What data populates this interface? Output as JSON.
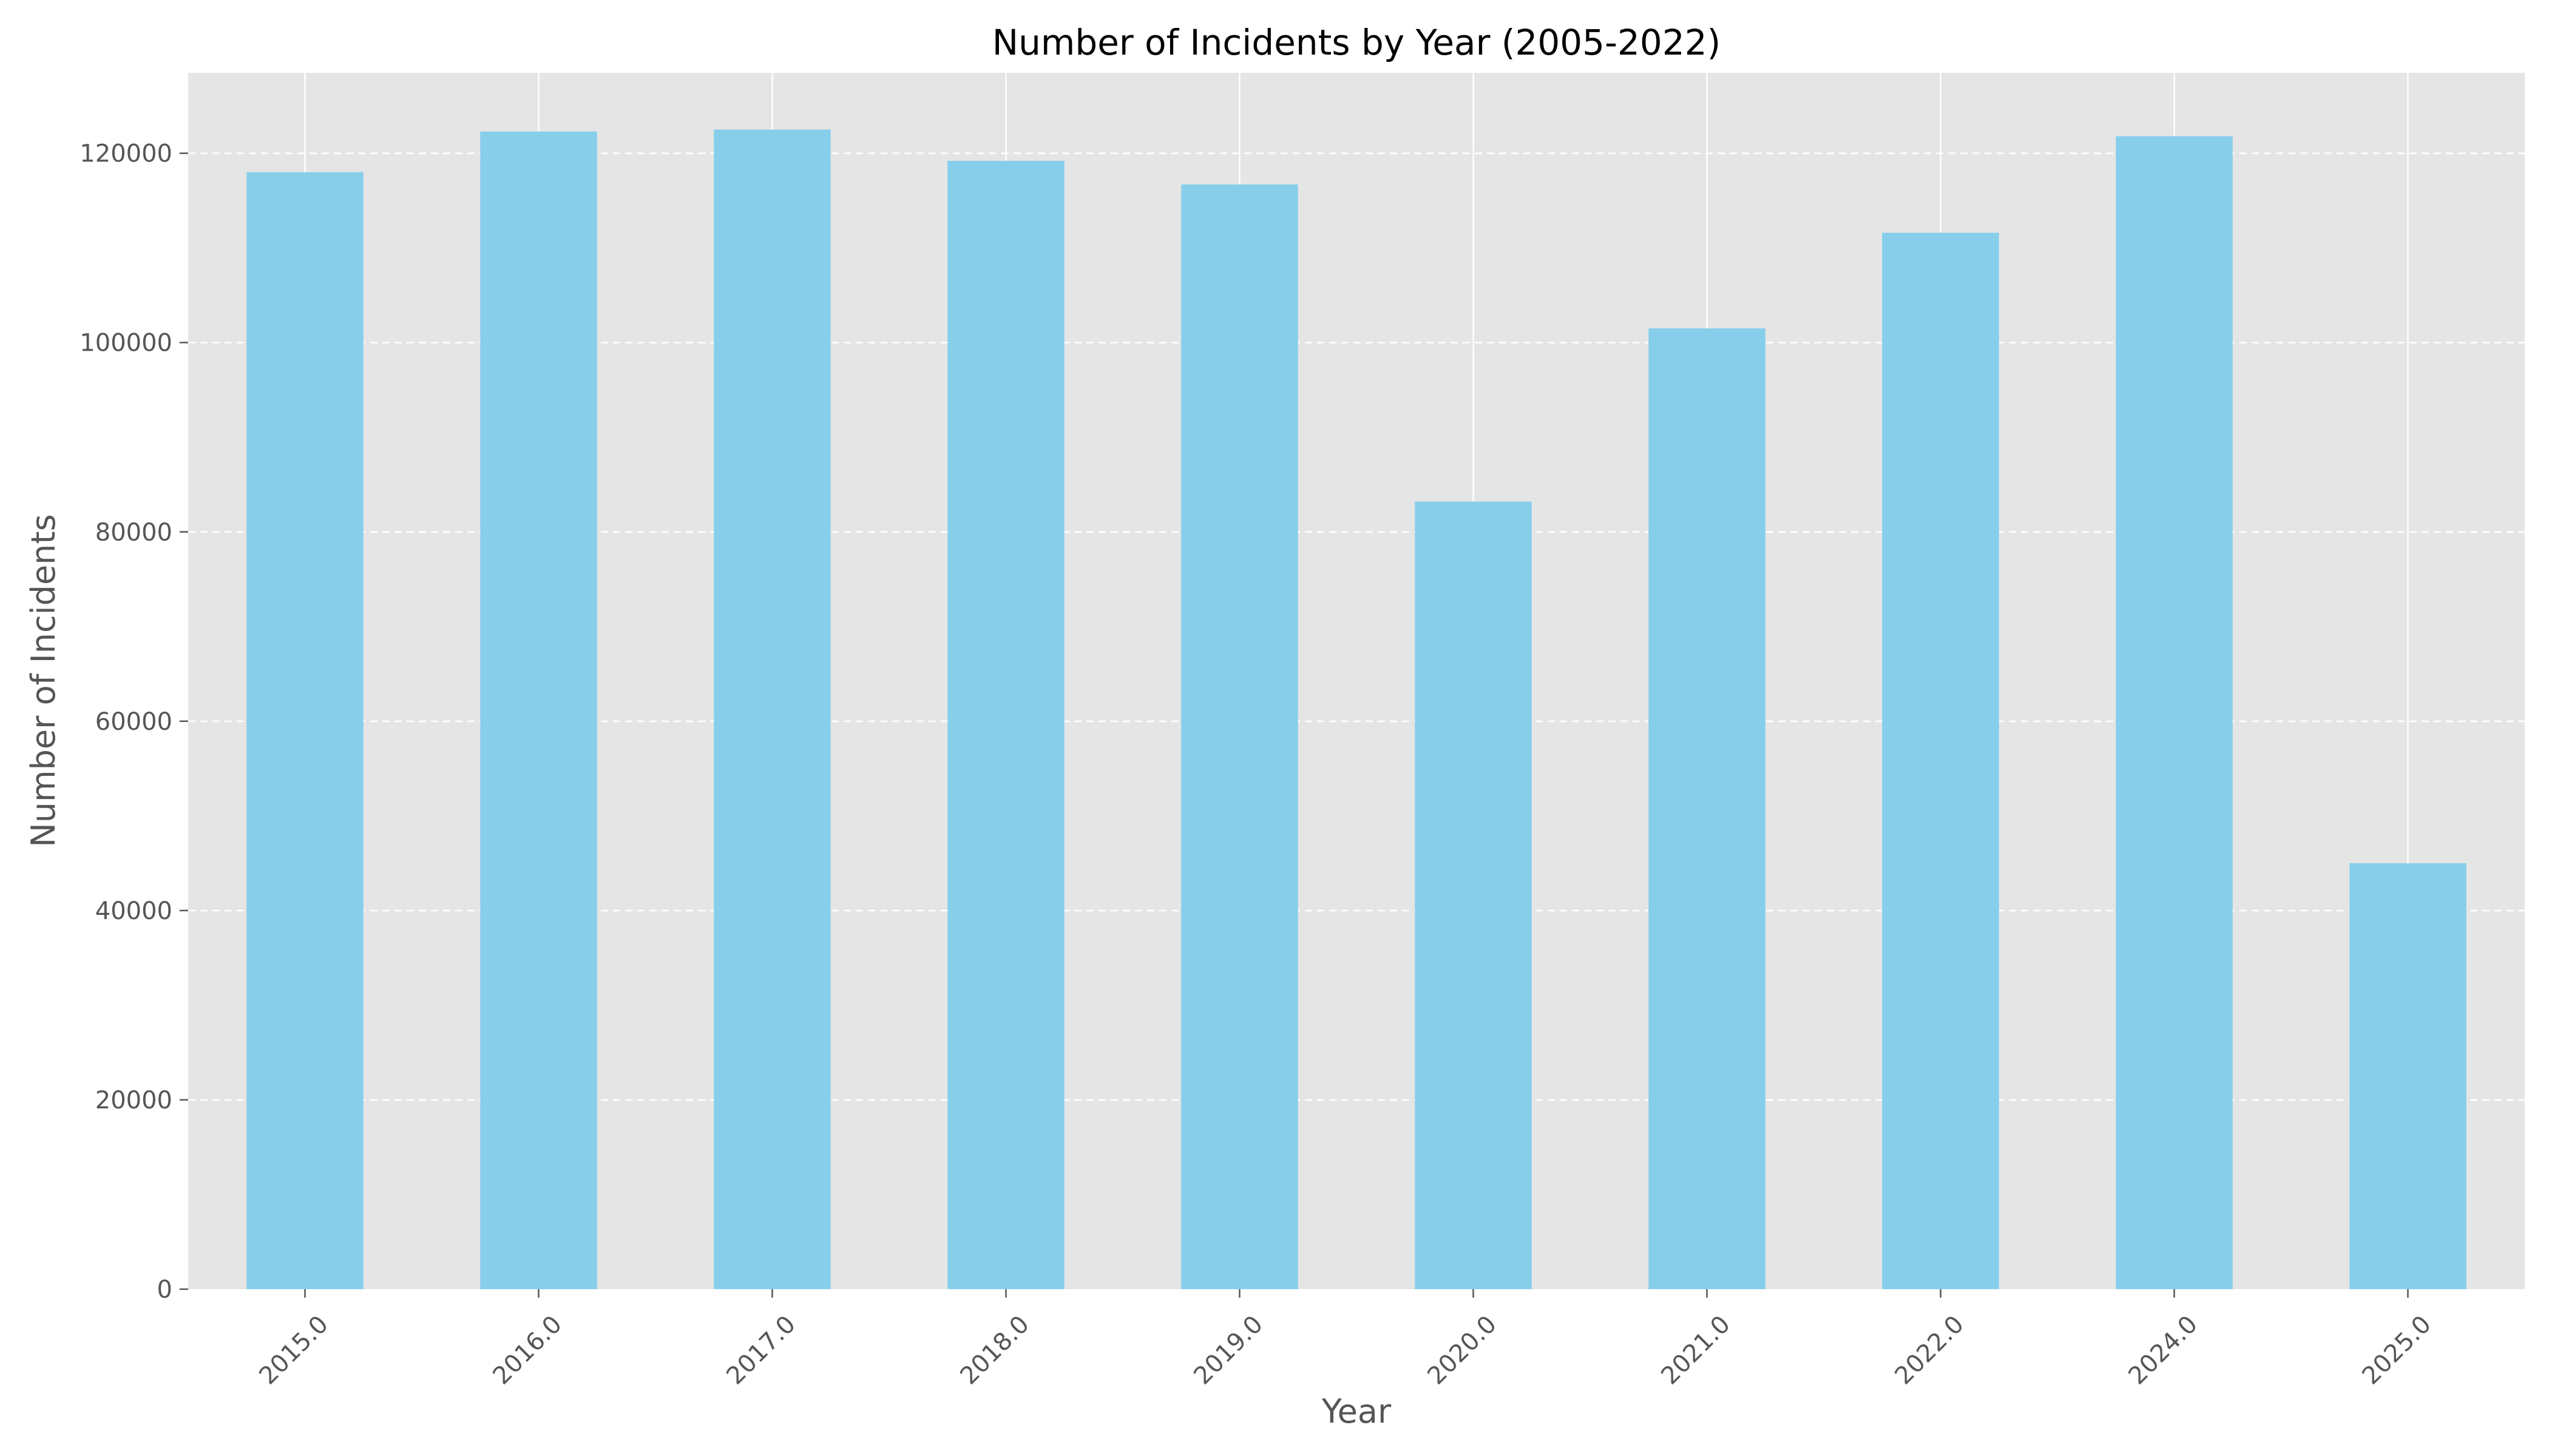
{
  "chart_data": {
    "type": "bar",
    "title": "Number of Incidents by Year (2005-2022)",
    "xlabel": "Year",
    "ylabel": "Number of Incidents",
    "categories": [
      "2015.0",
      "2016.0",
      "2017.0",
      "2018.0",
      "2019.0",
      "2020.0",
      "2021.0",
      "2022.0",
      "2024.0",
      "2025.0"
    ],
    "values": [
      118000,
      122300,
      122500,
      119200,
      116700,
      83200,
      101500,
      111600,
      121800,
      45000
    ],
    "ylim": [
      0,
      128500
    ],
    "yticks": [
      0,
      20000,
      40000,
      60000,
      80000,
      100000,
      120000
    ],
    "grid": {
      "x": "solid",
      "y": "dashed"
    },
    "colors": {
      "bar": "#87CEEB",
      "plot_background": "#E5E5E5",
      "grid": "#FFFFFF"
    }
  }
}
